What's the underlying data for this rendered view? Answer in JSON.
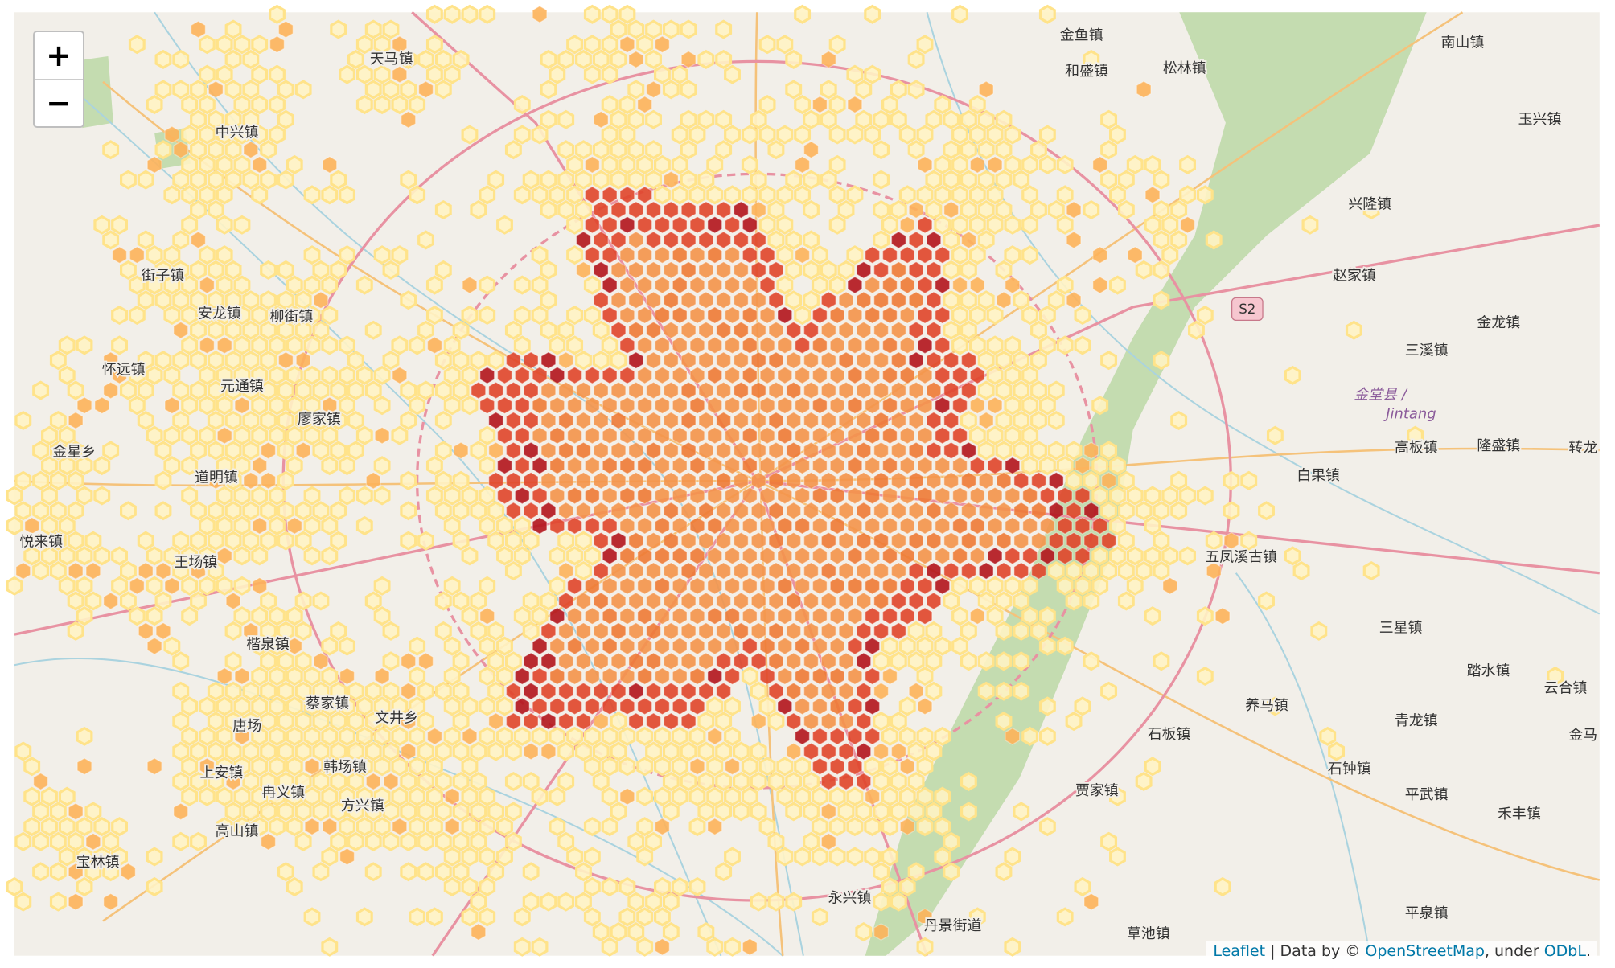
{
  "zoom_control": {
    "zoom_in": "+",
    "zoom_out": "−"
  },
  "places": [
    "金鱼镇",
    "和盛镇",
    "松林镇",
    "南山镇",
    "玉兴镇",
    "兴隆镇",
    "赵家镇",
    "三溪镇",
    "金龙镇",
    "高板镇",
    "隆盛镇",
    "转龙",
    "白果镇",
    "五凤溪古镇",
    "三星镇",
    "踏水镇",
    "云合镇",
    "青龙镇",
    "金马",
    "石钟镇",
    "平武镇",
    "禾丰镇",
    "养马镇",
    "平泉镇",
    "草池镇",
    "丹景街道",
    "永兴镇",
    "宝林镇",
    "上安镇",
    "冉义镇",
    "楷泉镇",
    "王场镇",
    "悦来镇",
    "金星乡",
    "怀远镇",
    "元通镇",
    "廖家镇",
    "安龙镇",
    "柳街镇",
    "街子镇",
    "中兴镇",
    "天马镇",
    "蔡家镇",
    "文井乡",
    "韩场镇",
    "方兴镇",
    "道明镇",
    "唐场",
    "高山镇",
    "贾家镇",
    "石板镇"
  ],
  "road_shield": "S2",
  "county_label": {
    "zh": "金堂县 /",
    "en": "Jintang"
  },
  "attribution": {
    "leaflet": "Leaflet",
    "data_by": "| Data by ©",
    "osm": "OpenStreetMap",
    "under": ", under",
    "odbl": "ODbL",
    "end": "."
  }
}
